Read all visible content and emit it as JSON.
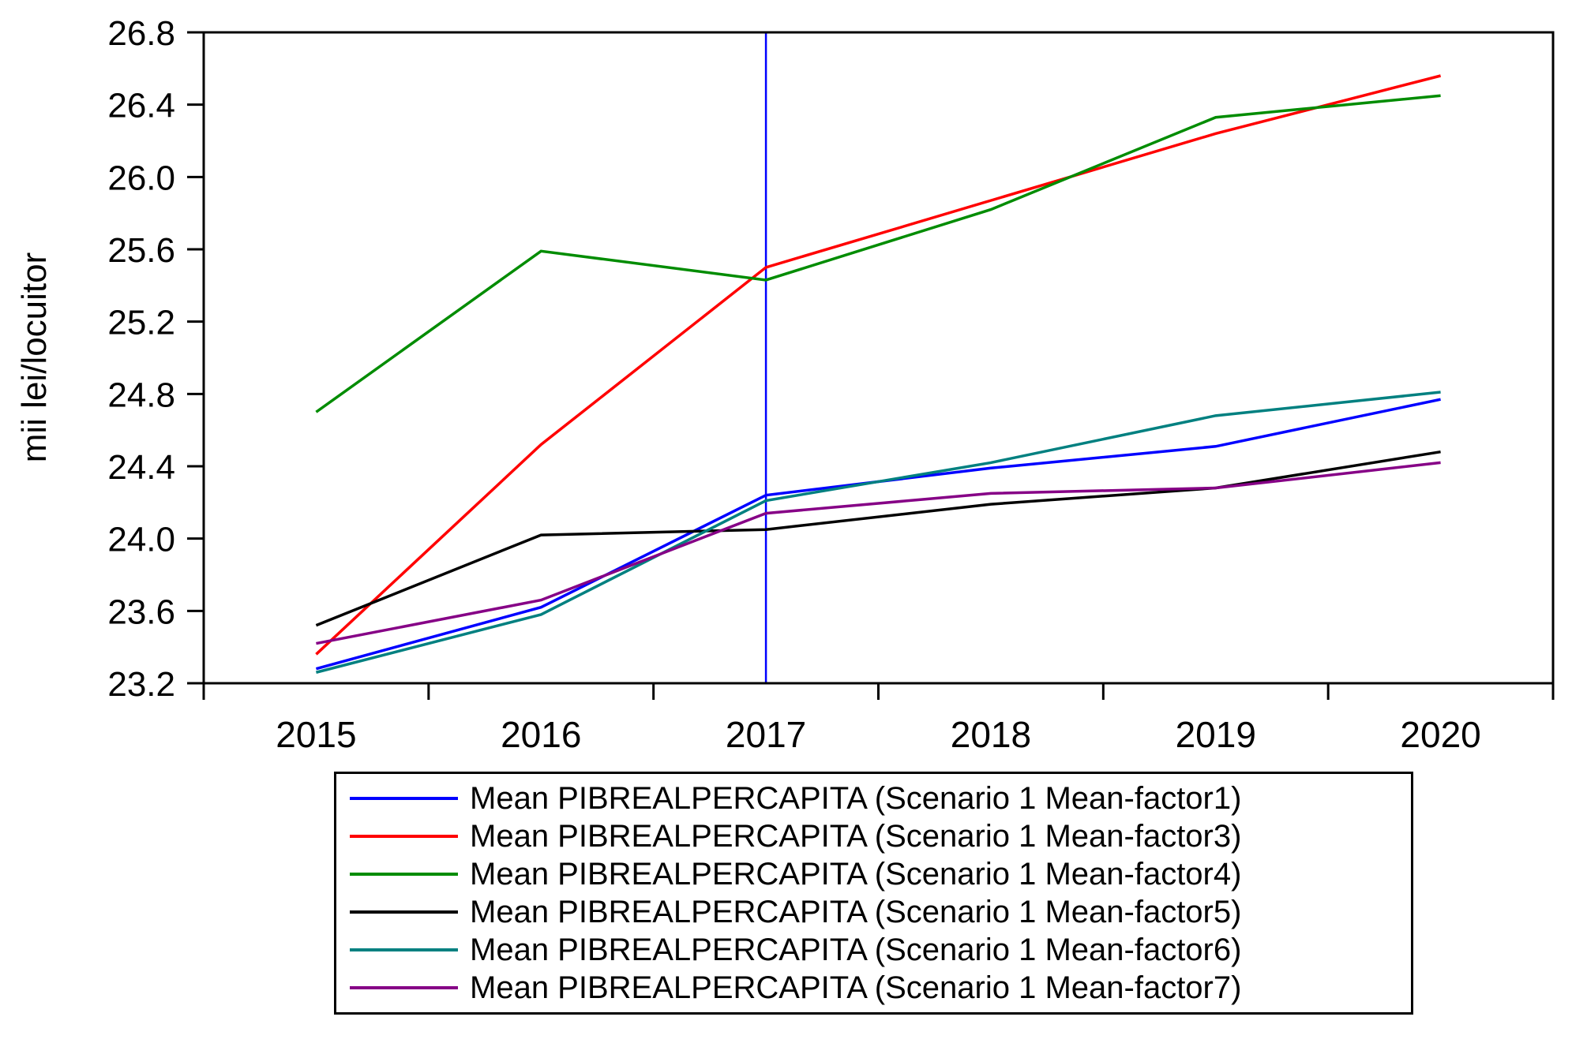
{
  "chart_data": {
    "type": "line",
    "title": "",
    "xlabel": "",
    "ylabel": "mii lei/locuitor",
    "x": [
      2015,
      2016,
      2017,
      2018,
      2019,
      2020
    ],
    "x_labels": [
      "2015",
      "2016",
      "2017",
      "2018",
      "2019",
      "2020"
    ],
    "ylim": [
      23.2,
      26.8
    ],
    "ytick_step": 0.4,
    "ytick_labels": [
      "23.2",
      "23.6",
      "24.0",
      "24.4",
      "24.8",
      "25.2",
      "25.6",
      "26.0",
      "26.4",
      "26.8"
    ],
    "grid": false,
    "legend_position": "bottom-outside",
    "frame_color": "#000000",
    "vline": {
      "x_label": "2017",
      "x_index": 2,
      "color": "#0000ff"
    },
    "series": [
      {
        "name": "Mean PIBREALPERCAPITA (Scenario 1 Mean-factor1)",
        "color": "#0000ff",
        "values": [
          23.28,
          23.62,
          24.24,
          24.39,
          24.51,
          24.77
        ]
      },
      {
        "name": "Mean PIBREALPERCAPITA (Scenario 1 Mean-factor3)",
        "color": "#ff0000",
        "values": [
          23.36,
          24.52,
          25.5,
          25.87,
          26.24,
          26.56
        ]
      },
      {
        "name": "Mean PIBREALPERCAPITA (Scenario 1 Mean-factor4)",
        "color": "#008c00",
        "values": [
          24.7,
          25.59,
          25.43,
          25.82,
          26.33,
          26.45
        ]
      },
      {
        "name": "Mean PIBREALPERCAPITA (Scenario 1 Mean-factor5)",
        "color": "#000000",
        "values": [
          23.52,
          24.02,
          24.05,
          24.19,
          24.28,
          24.48
        ]
      },
      {
        "name": "Mean PIBREALPERCAPITA (Scenario 1 Mean-factor6)",
        "color": "#008080",
        "values": [
          23.26,
          23.58,
          24.21,
          24.42,
          24.68,
          24.81
        ]
      },
      {
        "name": "Mean PIBREALPERCAPITA (Scenario 1 Mean-factor7)",
        "color": "#860086",
        "values": [
          23.42,
          23.66,
          24.14,
          24.25,
          24.28,
          24.42
        ]
      }
    ]
  }
}
